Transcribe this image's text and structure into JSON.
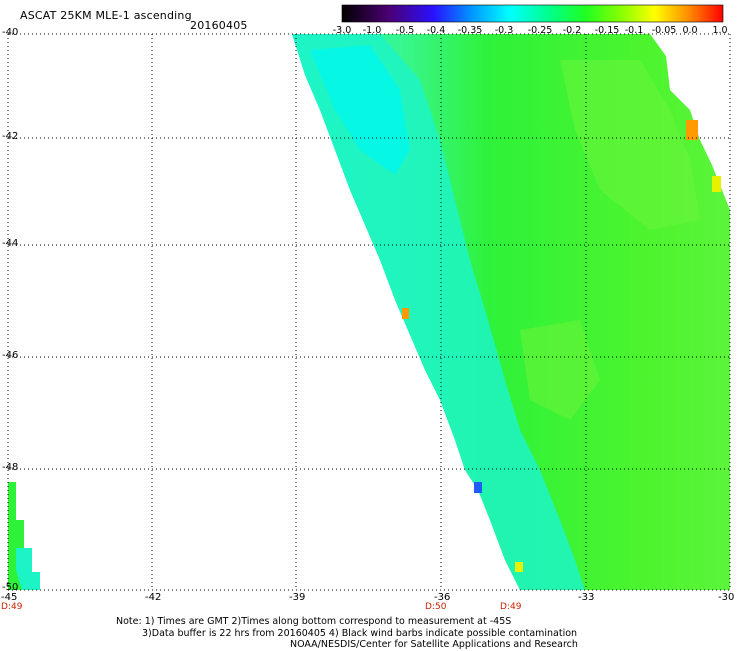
{
  "header": {
    "title": "ASCAT 25KM MLE-1 ascending",
    "date": "20160405"
  },
  "colorbar": {
    "labels": [
      "-3.0",
      "-1.0",
      "-0.5",
      "-0.4",
      "-0.35",
      "-0.3",
      "-0.25",
      "-0.2",
      "-0.15",
      "-0.1",
      "-0.05",
      "0.0",
      "1.0"
    ],
    "colors": [
      "#000000",
      "#3a0070",
      "#6800c0",
      "#2020ff",
      "#0090ff",
      "#00e8ff",
      "#00ffc8",
      "#00ff60",
      "#30ff00",
      "#b0ff00",
      "#ffff00",
      "#ff8800",
      "#ff0000"
    ]
  },
  "axes": {
    "x_ticks": [
      "-45",
      "-42",
      "-39",
      "-36",
      "-33",
      "-30"
    ],
    "y_ticks": [
      "-40",
      "-42",
      "-44",
      "-46",
      "-48",
      "-50"
    ]
  },
  "time_labels": [
    "D:49",
    "D:50",
    "D:49"
  ],
  "notes": [
    "Note: 1) Times are GMT 2)Times along bottom correspond to measurement at -45S",
    "3)Data buffer is 22 hrs from 20160405 4) Black wind barbs indicate possible contamination",
    "NOAA/NESDIS/Center for Satellite Applications and Research"
  ],
  "map_colors": {
    "swath_base": "#2ef23a",
    "swath_light": "#7cf43a",
    "swath_cyan": "#1cf7d2",
    "swath_aqua": "#00ffee",
    "edge_orange": "#ff9a00",
    "edge_yellow": "#e8f200",
    "edge_blue": "#1e5cff"
  }
}
